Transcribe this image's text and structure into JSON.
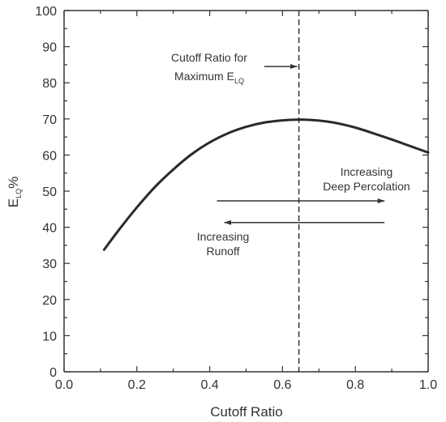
{
  "chart_data": {
    "type": "line",
    "xlabel": "Cutoff Ratio",
    "ylabel": {
      "main": "E",
      "sub": "LQ",
      "suffix": "%"
    },
    "xlim": [
      0,
      1
    ],
    "ylim": [
      0,
      100
    ],
    "x_ticks": [
      0.0,
      0.2,
      0.4,
      0.6,
      0.8,
      1.0
    ],
    "x_tick_labels": [
      "0.0",
      "0.2",
      "0.4",
      "0.6",
      "0.8",
      "1.0"
    ],
    "y_ticks": [
      0,
      10,
      20,
      30,
      40,
      50,
      60,
      70,
      80,
      90,
      100
    ],
    "y_tick_labels": [
      "0",
      "10",
      "20",
      "30",
      "40",
      "50",
      "60",
      "70",
      "80",
      "90",
      "100"
    ],
    "grid": false,
    "series": [
      {
        "x": [
          0.11,
          0.15,
          0.2,
          0.25,
          0.3,
          0.35,
          0.4,
          0.45,
          0.5,
          0.55,
          0.6,
          0.64,
          0.68,
          0.72,
          0.76,
          0.8,
          0.85,
          0.9,
          0.95,
          1.0
        ],
        "y": [
          33.8,
          39.2,
          45.5,
          51.2,
          56.0,
          60.2,
          63.5,
          66.0,
          67.8,
          69.0,
          69.6,
          69.8,
          69.7,
          69.3,
          68.6,
          67.6,
          66.0,
          64.3,
          62.5,
          60.7
        ]
      }
    ],
    "reference_line": {
      "x": 0.645,
      "style": "dashed"
    },
    "annotations": [
      {
        "lines": [
          "Cutoff Ratio for",
          "Maximum E"
        ],
        "sub": "LQ"
      },
      {
        "lines": [
          "Increasing",
          "Deep Percolation"
        ]
      },
      {
        "lines": [
          "Increasing",
          "Runoff"
        ]
      }
    ],
    "arrows": [
      {
        "x_from": 0.42,
        "x_to": 0.88,
        "y": 47.3,
        "direction": "right"
      },
      {
        "x_from": 0.88,
        "x_to": 0.44,
        "y": 41.3,
        "direction": "left"
      },
      {
        "x_from": 0.55,
        "x_to": 0.64,
        "y": 84.5,
        "direction": "right"
      }
    ]
  }
}
